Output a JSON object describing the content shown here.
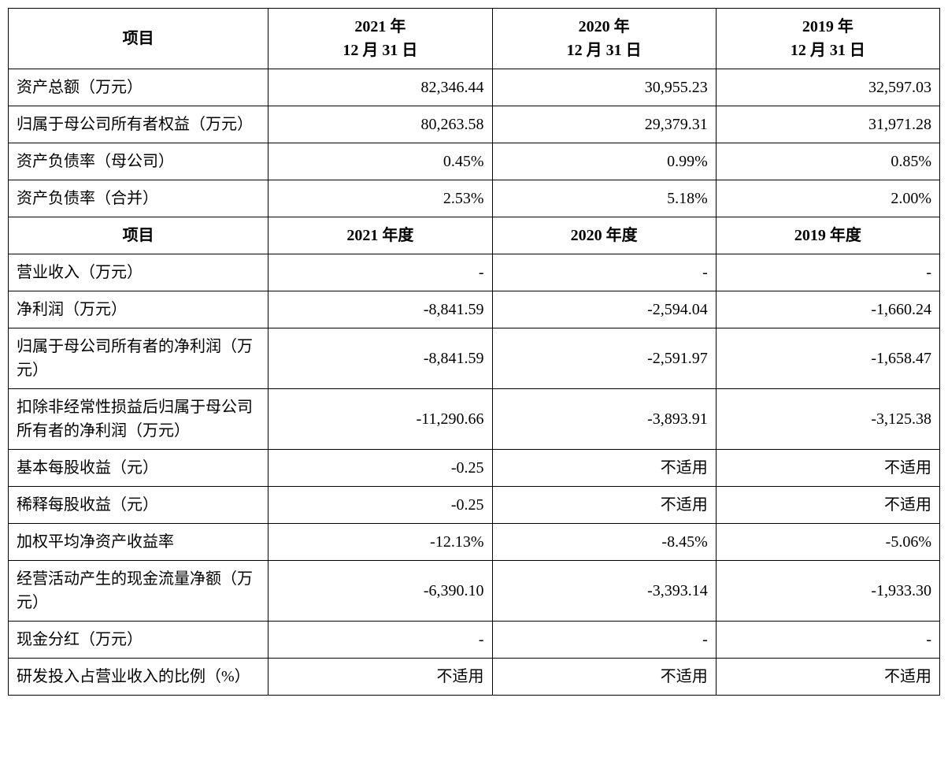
{
  "table": {
    "header1": {
      "label": "项目",
      "col1": "2021 年\n12 月 31 日",
      "col2": "2020 年\n12 月 31 日",
      "col3": "2019 年\n12 月 31 日"
    },
    "section1": [
      {
        "label": "资产总额（万元）",
        "c1": "82,346.44",
        "c2": "30,955.23",
        "c3": "32,597.03"
      },
      {
        "label": "归属于母公司所有者权益（万元）",
        "c1": "80,263.58",
        "c2": "29,379.31",
        "c3": "31,971.28"
      },
      {
        "label": "资产负债率（母公司）",
        "c1": "0.45%",
        "c2": "0.99%",
        "c3": "0.85%"
      },
      {
        "label": "资产负债率（合并）",
        "c1": "2.53%",
        "c2": "5.18%",
        "c3": "2.00%"
      }
    ],
    "header2": {
      "label": "项目",
      "col1": "2021 年度",
      "col2": "2020 年度",
      "col3": "2019 年度"
    },
    "section2": [
      {
        "label": "营业收入（万元）",
        "c1": "-",
        "c2": "-",
        "c3": "-"
      },
      {
        "label": "净利润（万元）",
        "c1": "-8,841.59",
        "c2": "-2,594.04",
        "c3": "-1,660.24"
      },
      {
        "label": "归属于母公司所有者的净利润（万元）",
        "c1": "-8,841.59",
        "c2": "-2,591.97",
        "c3": "-1,658.47"
      },
      {
        "label": "扣除非经常性损益后归属于母公司所有者的净利润（万元）",
        "c1": "-11,290.66",
        "c2": "-3,893.91",
        "c3": "-3,125.38"
      },
      {
        "label": "基本每股收益（元）",
        "c1": "-0.25",
        "c2": "不适用",
        "c3": "不适用"
      },
      {
        "label": "稀释每股收益（元）",
        "c1": "-0.25",
        "c2": "不适用",
        "c3": "不适用"
      },
      {
        "label": "加权平均净资产收益率",
        "c1": "-12.13%",
        "c2": "-8.45%",
        "c3": "-5.06%"
      },
      {
        "label": "经营活动产生的现金流量净额（万元）",
        "c1": "-6,390.10",
        "c2": "-3,393.14",
        "c3": "-1,933.30"
      },
      {
        "label": "现金分红（万元）",
        "c1": "-",
        "c2": "-",
        "c3": "-"
      },
      {
        "label": "研发投入占营业收入的比例（%）",
        "c1": "不适用",
        "c2": "不适用",
        "c3": "不适用"
      }
    ]
  }
}
